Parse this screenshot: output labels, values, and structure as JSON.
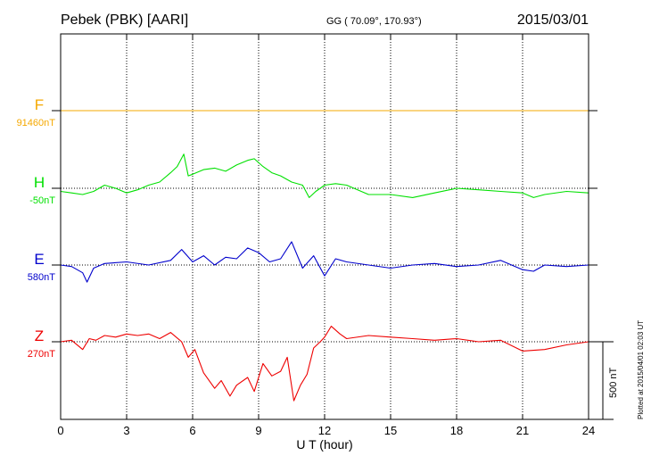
{
  "chart_data": {
    "type": "line",
    "title": "Pebek (PBK)  [AARI]",
    "coords": "GG ( 70.09°, 170.93°)",
    "date": "2015/03/01",
    "xlabel": "U T (hour)",
    "xlim": [
      0,
      24
    ],
    "xticks": [
      "0",
      "3",
      "6",
      "9",
      "12",
      "15",
      "18",
      "21",
      "24"
    ],
    "scale_label": "500 nT",
    "scale_nT": 500,
    "series": [
      {
        "name": "F",
        "baseline_label": "91460nT",
        "color": "#f5a800",
        "x": [
          0,
          24
        ],
        "values": [
          0,
          0
        ]
      },
      {
        "name": "H",
        "baseline_label": "-50nT",
        "color": "#00e000",
        "x": [
          0,
          0.5,
          1.0,
          1.5,
          2.0,
          2.5,
          3.0,
          3.5,
          4.0,
          4.5,
          5.0,
          5.3,
          5.6,
          5.8,
          6.0,
          6.5,
          7.0,
          7.5,
          8.0,
          8.5,
          8.8,
          9.2,
          9.6,
          10.0,
          10.5,
          11.0,
          11.3,
          11.6,
          12.0,
          12.5,
          13.0,
          14.0,
          15.0,
          16.0,
          17.0,
          18.0,
          19.0,
          20.0,
          21.0,
          21.5,
          22.0,
          23.0,
          24.0
        ],
        "values": [
          -20,
          -30,
          -40,
          -20,
          20,
          0,
          -30,
          -10,
          20,
          40,
          100,
          140,
          220,
          80,
          90,
          120,
          130,
          110,
          150,
          180,
          190,
          140,
          100,
          80,
          40,
          20,
          -60,
          -20,
          20,
          30,
          20,
          -40,
          -40,
          -60,
          -30,
          0,
          -10,
          -20,
          -30,
          -60,
          -40,
          -20,
          -30
        ]
      },
      {
        "name": "E",
        "baseline_label": "580nT",
        "color": "#0000cc",
        "x": [
          0,
          0.5,
          1.0,
          1.2,
          1.5,
          2.0,
          3.0,
          4.0,
          5.0,
          5.5,
          6.0,
          6.5,
          7.0,
          7.5,
          8.0,
          8.5,
          9.0,
          9.5,
          10.0,
          10.5,
          11.0,
          11.5,
          12.0,
          12.5,
          13.0,
          14.0,
          15.0,
          16.0,
          17.0,
          18.0,
          19.0,
          20.0,
          21.0,
          21.5,
          22.0,
          23.0,
          24.0
        ],
        "values": [
          0,
          -10,
          -50,
          -110,
          -20,
          10,
          20,
          0,
          30,
          100,
          20,
          60,
          0,
          50,
          40,
          110,
          80,
          20,
          40,
          150,
          -20,
          60,
          -70,
          40,
          20,
          0,
          -20,
          0,
          10,
          -10,
          0,
          30,
          -30,
          -40,
          0,
          -10,
          0
        ]
      },
      {
        "name": "Z",
        "baseline_label": "270nT",
        "color": "#ee0000",
        "x": [
          0,
          0.5,
          1.0,
          1.3,
          1.6,
          2.0,
          2.5,
          3.0,
          3.5,
          4.0,
          4.5,
          5.0,
          5.5,
          5.8,
          6.1,
          6.5,
          7.0,
          7.3,
          7.7,
          8.0,
          8.5,
          8.8,
          9.2,
          9.6,
          10.0,
          10.3,
          10.6,
          10.9,
          11.2,
          11.5,
          11.8,
          12.0,
          12.3,
          12.7,
          13.0,
          14.0,
          15.0,
          16.0,
          17.0,
          18.0,
          19.0,
          20.0,
          21.0,
          22.0,
          23.0,
          24.0
        ],
        "values": [
          0,
          10,
          -50,
          20,
          10,
          40,
          30,
          50,
          40,
          50,
          20,
          60,
          0,
          -100,
          -50,
          -200,
          -300,
          -250,
          -350,
          -280,
          -230,
          -320,
          -140,
          -220,
          -190,
          -100,
          -380,
          -280,
          -210,
          -40,
          0,
          30,
          100,
          50,
          20,
          40,
          30,
          20,
          10,
          20,
          0,
          10,
          -60,
          -50,
          -20,
          0
        ]
      }
    ],
    "grid": true
  },
  "footer": {
    "plotted_note": "Plotted at 2015/04/01 02:03 UT"
  }
}
